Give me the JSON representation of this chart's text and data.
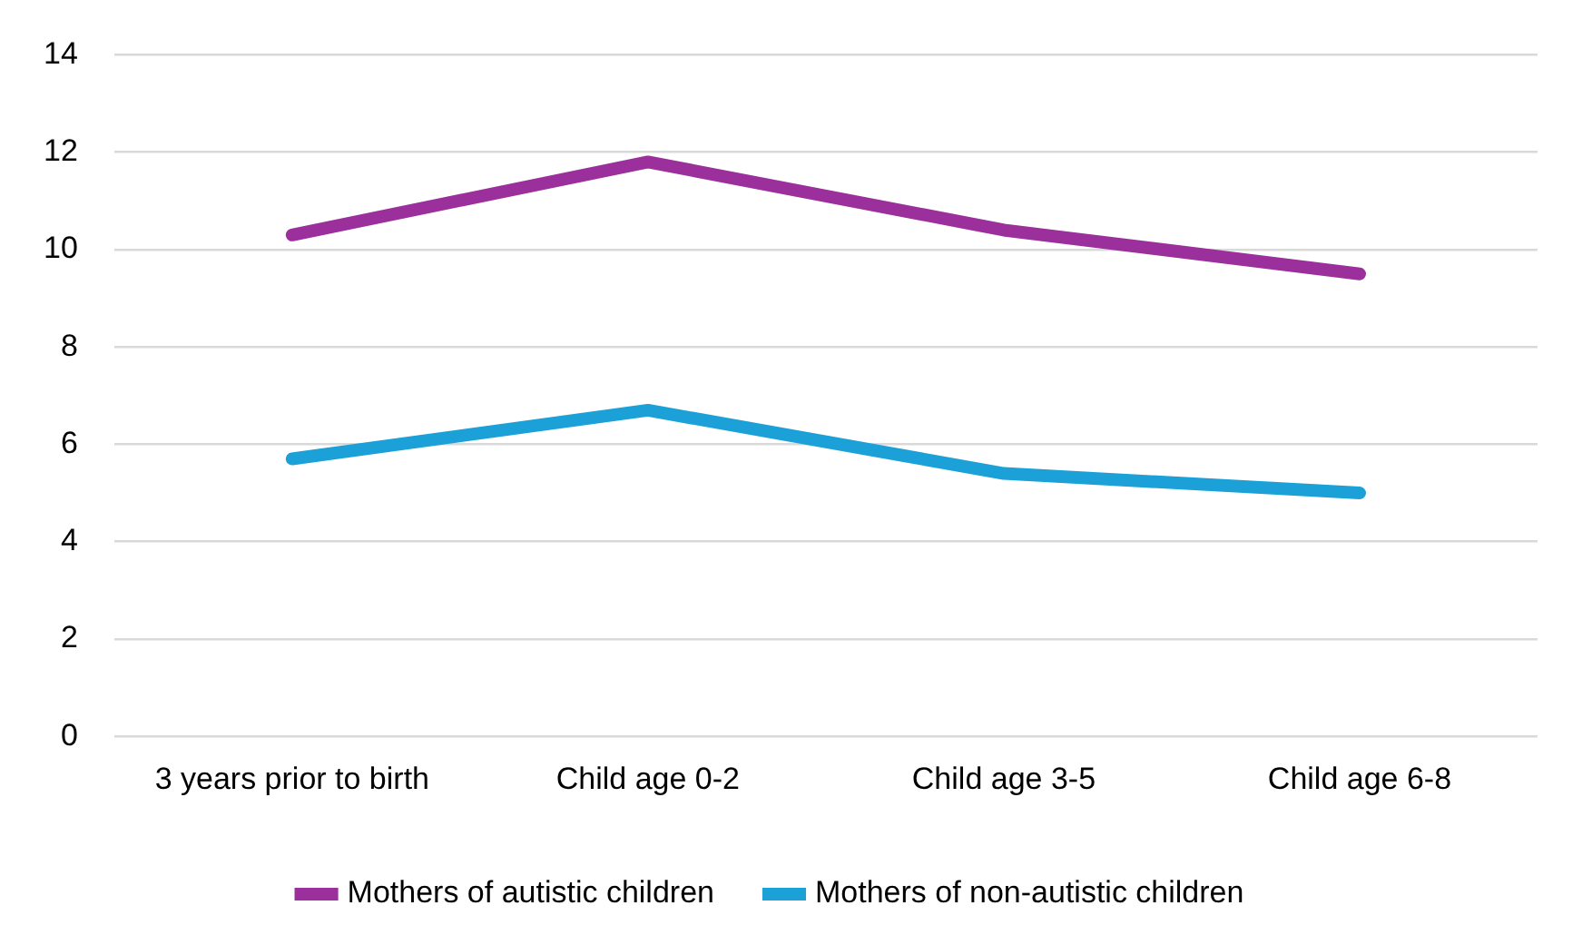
{
  "chart_data": {
    "type": "line",
    "categories": [
      "3 years prior to birth",
      "Child age 0-2",
      "Child age 3-5",
      "Child age 6-8"
    ],
    "series": [
      {
        "name": "Mothers of autistic children",
        "color": "#9b2f9b",
        "values": [
          10.3,
          11.8,
          10.4,
          9.5
        ]
      },
      {
        "name": "Mothers of non-autistic children",
        "color": "#1ba1d8",
        "values": [
          5.7,
          6.7,
          5.4,
          5.0
        ]
      }
    ],
    "ylim": [
      0,
      14
    ],
    "yticks": [
      0,
      2,
      4,
      6,
      8,
      10,
      12,
      14
    ],
    "grid": "y",
    "legend": "bottom",
    "marker": "none",
    "line_style": "solid"
  }
}
